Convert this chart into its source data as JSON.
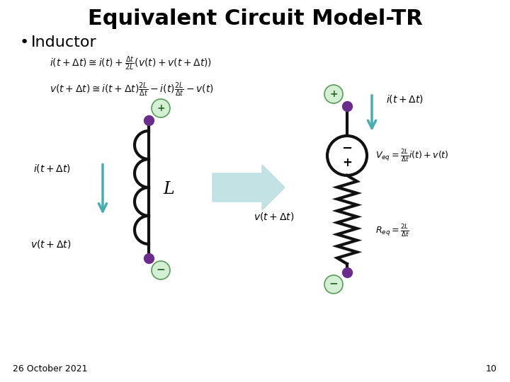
{
  "title": "Equivalent Circuit Model-TR",
  "bullet": "Inductor",
  "date": "26 October 2021",
  "page": "10",
  "bg_color": "#ffffff",
  "title_color": "#000000",
  "bullet_color": "#000000",
  "teal_color": "#4aacb0",
  "purple_color": "#6B2D8B",
  "green_circle_fill": "#d4f0d4",
  "green_circle_edge": "#5a9a5a",
  "wire_color": "#111111",
  "resistor_color": "#111111"
}
